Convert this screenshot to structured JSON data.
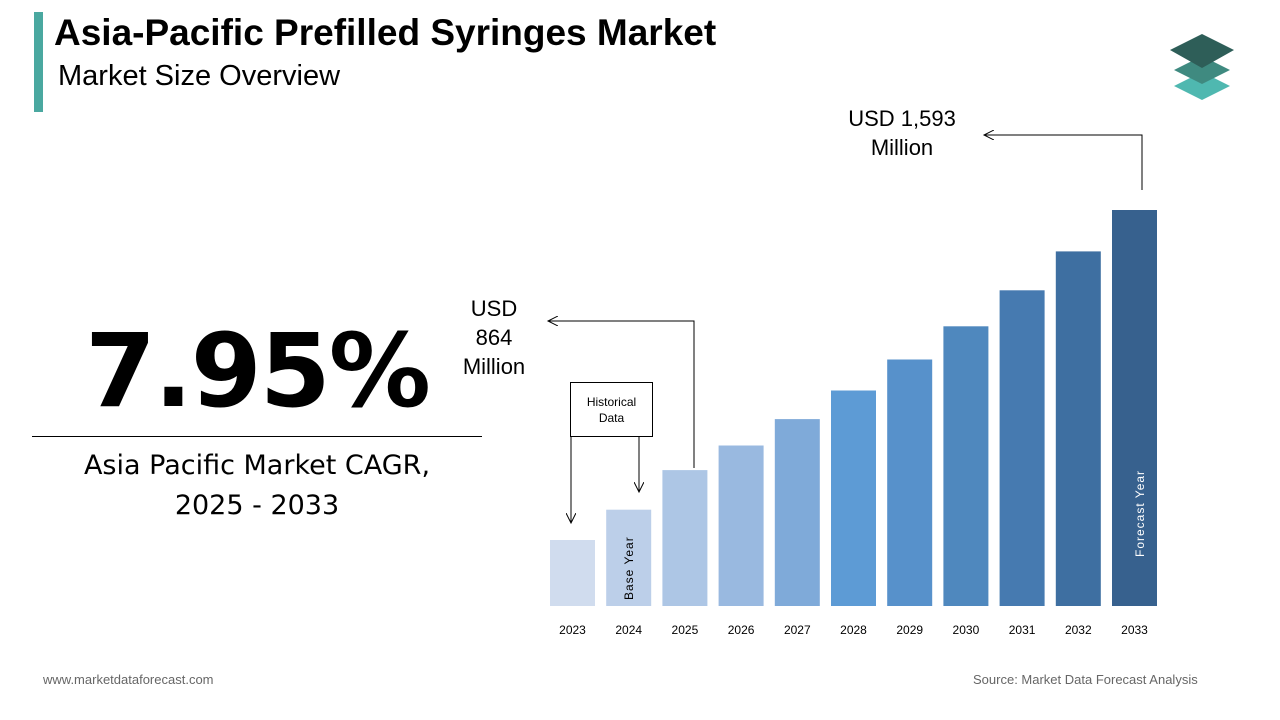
{
  "header": {
    "title": "Asia-Pacific Prefilled Syringes Market",
    "subtitle": "Market Size Overview"
  },
  "cagr": {
    "value": "7.95%",
    "caption_line1": "Asia Pacific Market CAGR,",
    "caption_line2": "2025 - 2033"
  },
  "annotations": {
    "start_value_line1": "USD",
    "start_value_line2": "864",
    "start_value_line3": "Million",
    "end_value_line1": "USD 1,593",
    "end_value_line2": "Million",
    "historical_line1": "Historical",
    "historical_line2": "Data",
    "base_year": "Base Year",
    "forecast_year": "Forecast Year"
  },
  "footer": {
    "website": "www.marketdataforecast.com",
    "source": "Source: Market Data Forecast Analysis"
  },
  "logo": {
    "icon": "stacked-layers-icon",
    "colors": [
      "#2e5e58",
      "#3f8a80",
      "#4fb8b0"
    ]
  },
  "chart_data": {
    "type": "bar",
    "categories": [
      "2023",
      "2024",
      "2025",
      "2026",
      "2027",
      "2028",
      "2029",
      "2030",
      "2031",
      "2032",
      "2033"
    ],
    "values": [
      668,
      753,
      864,
      933,
      1007,
      1087,
      1174,
      1267,
      1368,
      1477,
      1593
    ],
    "bar_colors": [
      "#d0dcee",
      "#bccfe9",
      "#adc6e5",
      "#99b9e0",
      "#7faad9",
      "#5d9bd5",
      "#5791cb",
      "#4f88be",
      "#467ab0",
      "#3e6fa1",
      "#37618e"
    ],
    "grid": false,
    "legend": "none"
  }
}
